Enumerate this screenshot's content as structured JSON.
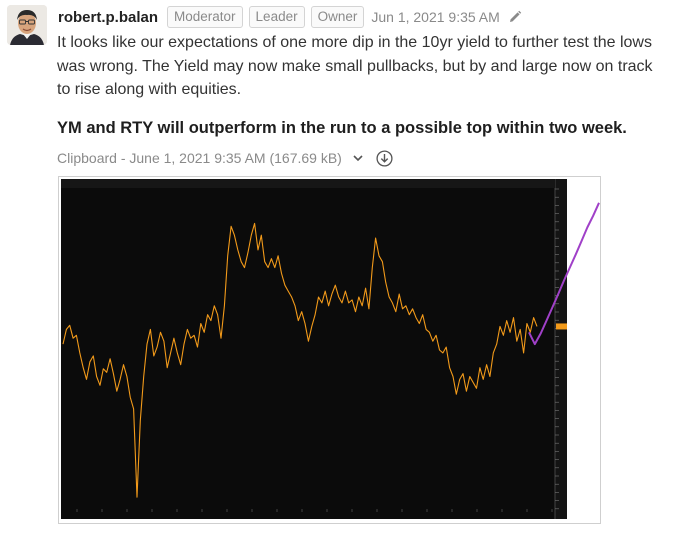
{
  "post": {
    "author": "robert.p.balan",
    "badges": [
      "Moderator",
      "Leader",
      "Owner"
    ],
    "timestamp": "Jun 1, 2021 9:35 AM",
    "message": "It looks like our expectations of one more dip in the 10yr yield to further test the lows was wrong. The Yield may now make small pullbacks, but by and large now on track to rise along with equities.",
    "headline": "YM and RTY will outperform in the run to a possible top within two week.",
    "attachment": {
      "label": "Clipboard - June 1, 2021 9:35 AM (167.69 kB)"
    }
  },
  "chart_data": {
    "type": "line",
    "title": "",
    "series": [
      {
        "color": "#f29a1a",
        "values": [
          1.56,
          1.585,
          1.592,
          1.57,
          1.575,
          1.545,
          1.52,
          1.5,
          1.53,
          1.54,
          1.505,
          1.49,
          1.518,
          1.512,
          1.535,
          1.51,
          1.48,
          1.5,
          1.525,
          1.505,
          1.47,
          1.45,
          1.3,
          1.43,
          1.505,
          1.56,
          1.585,
          1.54,
          1.555,
          1.58,
          1.565,
          1.52,
          1.545,
          1.57,
          1.545,
          1.525,
          1.56,
          1.585,
          1.57,
          1.575,
          1.555,
          1.595,
          1.58,
          1.61,
          1.6,
          1.625,
          1.61,
          1.57,
          1.625,
          1.71,
          1.76,
          1.745,
          1.72,
          1.7,
          1.69,
          1.715,
          1.745,
          1.765,
          1.72,
          1.745,
          1.7,
          1.69,
          1.705,
          1.69,
          1.71,
          1.68,
          1.66,
          1.65,
          1.64,
          1.625,
          1.6,
          1.615,
          1.595,
          1.565,
          1.59,
          1.61,
          1.64,
          1.63,
          1.65,
          1.625,
          1.645,
          1.66,
          1.64,
          1.63,
          1.65,
          1.63,
          1.635,
          1.615,
          1.64,
          1.625,
          1.655,
          1.62,
          1.69,
          1.74,
          1.71,
          1.7,
          1.665,
          1.64,
          1.63,
          1.615,
          1.645,
          1.62,
          1.625,
          1.61,
          1.62,
          1.605,
          1.595,
          1.61,
          1.585,
          1.58,
          1.565,
          1.575,
          1.55,
          1.545,
          1.555,
          1.52,
          1.505,
          1.475,
          1.5,
          1.51,
          1.48,
          1.505,
          1.495,
          1.485,
          1.52,
          1.5,
          1.525,
          1.505,
          1.545,
          1.56,
          1.59,
          1.575,
          1.6,
          1.58,
          1.605,
          1.565,
          1.585,
          1.545,
          1.595,
          1.58,
          1.605,
          1.59
        ]
      },
      {
        "color": "#a040c8",
        "values": [
          1.58,
          1.56,
          1.578,
          1.6,
          1.622,
          1.645,
          1.668,
          1.69,
          1.712,
          1.735,
          1.758,
          1.778,
          1.8
        ]
      }
    ]
  }
}
